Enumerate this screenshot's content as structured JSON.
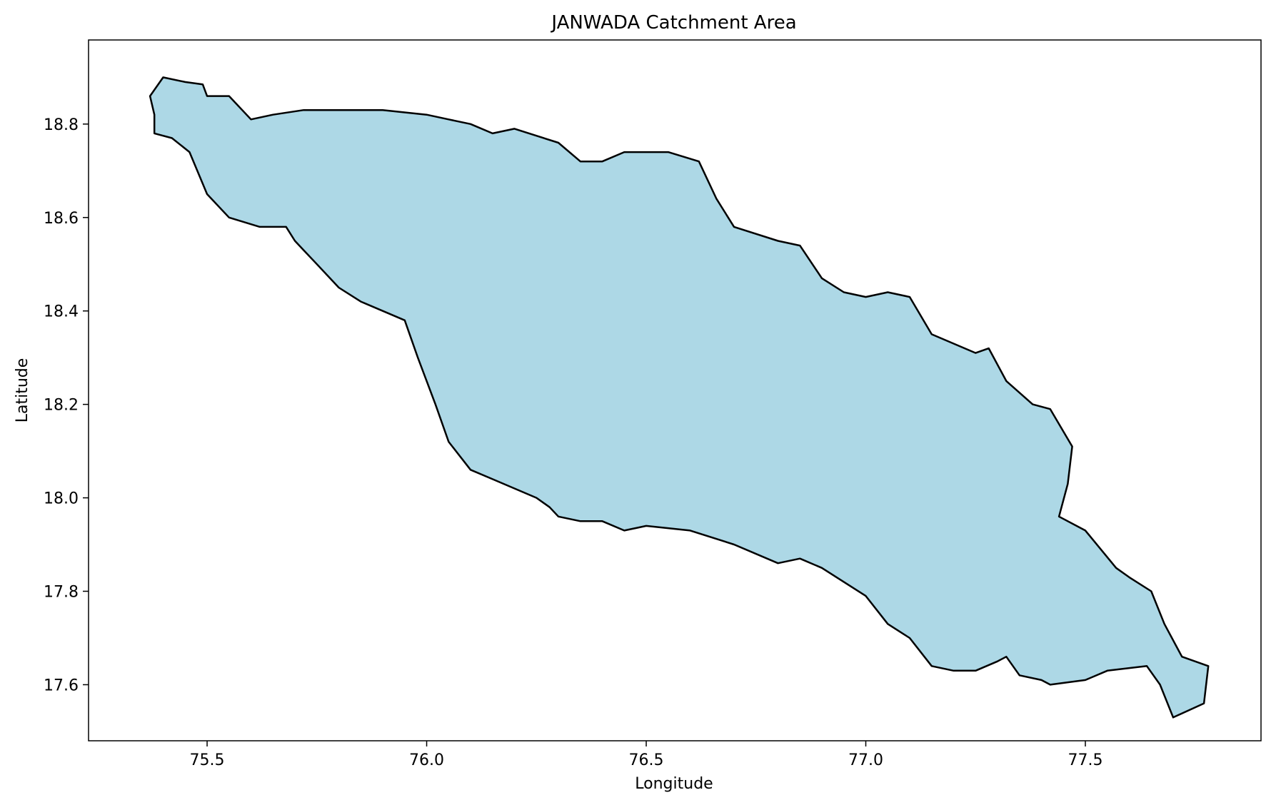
{
  "chart_data": {
    "type": "map",
    "title": "JANWADA Catchment Area",
    "xlabel": "Longitude",
    "ylabel": "Latitude",
    "xlim": [
      75.23,
      77.9
    ],
    "ylim": [
      17.48,
      18.98
    ],
    "xticks": [
      75.5,
      76.0,
      76.5,
      77.0,
      77.5
    ],
    "xtick_labels": [
      "75.5",
      "76.0",
      "76.5",
      "77.0",
      "77.5"
    ],
    "yticks": [
      17.6,
      17.8,
      18.0,
      18.2,
      18.4,
      18.6,
      18.8
    ],
    "ytick_labels": [
      "17.6",
      "17.8",
      "18.0",
      "18.2",
      "18.4",
      "18.6",
      "18.8"
    ],
    "grid": false,
    "fill_color": "#add8e6",
    "edge_color": "#000000",
    "catchment_outline": [
      [
        75.4,
        18.9
      ],
      [
        75.45,
        18.89
      ],
      [
        75.49,
        18.885
      ],
      [
        75.5,
        18.86
      ],
      [
        75.55,
        18.86
      ],
      [
        75.6,
        18.81
      ],
      [
        75.65,
        18.82
      ],
      [
        75.72,
        18.83
      ],
      [
        75.8,
        18.83
      ],
      [
        75.9,
        18.83
      ],
      [
        76.0,
        18.82
      ],
      [
        76.05,
        18.81
      ],
      [
        76.1,
        18.8
      ],
      [
        76.15,
        18.78
      ],
      [
        76.2,
        18.79
      ],
      [
        76.3,
        18.76
      ],
      [
        76.35,
        18.72
      ],
      [
        76.4,
        18.72
      ],
      [
        76.45,
        18.74
      ],
      [
        76.55,
        18.74
      ],
      [
        76.62,
        18.72
      ],
      [
        76.66,
        18.64
      ],
      [
        76.7,
        18.58
      ],
      [
        76.8,
        18.55
      ],
      [
        76.85,
        18.54
      ],
      [
        76.9,
        18.47
      ],
      [
        76.95,
        18.44
      ],
      [
        77.0,
        18.43
      ],
      [
        77.05,
        18.44
      ],
      [
        77.1,
        18.43
      ],
      [
        77.15,
        18.35
      ],
      [
        77.25,
        18.31
      ],
      [
        77.28,
        18.32
      ],
      [
        77.32,
        18.25
      ],
      [
        77.38,
        18.2
      ],
      [
        77.42,
        18.19
      ],
      [
        77.47,
        18.11
      ],
      [
        77.46,
        18.03
      ],
      [
        77.44,
        17.96
      ],
      [
        77.5,
        17.93
      ],
      [
        77.57,
        17.85
      ],
      [
        77.6,
        17.83
      ],
      [
        77.65,
        17.8
      ],
      [
        77.68,
        17.73
      ],
      [
        77.72,
        17.66
      ],
      [
        77.78,
        17.64
      ],
      [
        77.77,
        17.56
      ],
      [
        77.7,
        17.53
      ],
      [
        77.67,
        17.6
      ],
      [
        77.64,
        17.64
      ],
      [
        77.55,
        17.63
      ],
      [
        77.5,
        17.61
      ],
      [
        77.42,
        17.6
      ],
      [
        77.4,
        17.61
      ],
      [
        77.35,
        17.62
      ],
      [
        77.32,
        17.66
      ],
      [
        77.3,
        17.65
      ],
      [
        77.25,
        17.63
      ],
      [
        77.2,
        17.63
      ],
      [
        77.15,
        17.64
      ],
      [
        77.1,
        17.7
      ],
      [
        77.05,
        17.73
      ],
      [
        77.0,
        17.79
      ],
      [
        76.9,
        17.85
      ],
      [
        76.85,
        17.87
      ],
      [
        76.8,
        17.86
      ],
      [
        76.7,
        17.9
      ],
      [
        76.6,
        17.93
      ],
      [
        76.5,
        17.94
      ],
      [
        76.45,
        17.93
      ],
      [
        76.4,
        17.95
      ],
      [
        76.35,
        17.95
      ],
      [
        76.3,
        17.96
      ],
      [
        76.28,
        17.98
      ],
      [
        76.25,
        18.0
      ],
      [
        76.15,
        18.04
      ],
      [
        76.1,
        18.06
      ],
      [
        76.05,
        18.12
      ],
      [
        76.02,
        18.2
      ],
      [
        75.98,
        18.3
      ],
      [
        75.95,
        18.38
      ],
      [
        75.9,
        18.4
      ],
      [
        75.85,
        18.42
      ],
      [
        75.8,
        18.45
      ],
      [
        75.75,
        18.5
      ],
      [
        75.72,
        18.53
      ],
      [
        75.7,
        18.55
      ],
      [
        75.68,
        18.58
      ],
      [
        75.62,
        18.58
      ],
      [
        75.55,
        18.6
      ],
      [
        75.5,
        18.65
      ],
      [
        75.46,
        18.74
      ],
      [
        75.42,
        18.77
      ],
      [
        75.38,
        18.78
      ],
      [
        75.38,
        18.82
      ],
      [
        75.37,
        18.86
      ],
      [
        75.4,
        18.9
      ]
    ]
  }
}
